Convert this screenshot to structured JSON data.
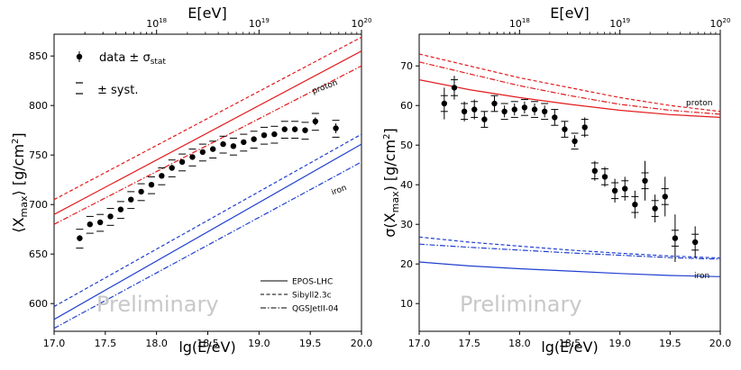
{
  "figure": {
    "watermark": "Preliminary"
  },
  "colors": {
    "proton": "#e31a1c",
    "iron": "#1f3fcf",
    "data": "#000000",
    "syst": "#000000",
    "watermark": "#c8c8c8"
  },
  "chart_data": [
    {
      "type": "scatter",
      "name": "mean-xmax",
      "xlabel": "lg(E/eV)",
      "ylabel": "⟨X",
      "ylabel_sub": "max",
      "ylabel_unit": "⟩  [g/cm",
      "ylabel_sup": "2",
      "ylabel_end": "]",
      "top_label": "E[eV]",
      "xlim": [
        17.0,
        20.0
      ],
      "ylim": [
        572,
        872
      ],
      "xticks": [
        17.0,
        17.5,
        18.0,
        18.5,
        19.0,
        19.5,
        20.0
      ],
      "xtick_labels": [
        "17.0",
        "17.5",
        "18.0",
        "18.5",
        "19.0",
        "19.5",
        "20.0"
      ],
      "yticks": [
        600,
        650,
        700,
        750,
        800,
        850
      ],
      "ytick_labels": [
        "600",
        "650",
        "700",
        "750",
        "800",
        "850"
      ],
      "top_ticks": [
        18,
        19,
        20
      ],
      "top_tick_labels": [
        {
          "base": "10",
          "exp": "18"
        },
        {
          "base": "10",
          "exp": "19"
        },
        {
          "base": "10",
          "exp": "20"
        }
      ],
      "data": {
        "x": [
          17.25,
          17.35,
          17.45,
          17.55,
          17.65,
          17.75,
          17.85,
          17.95,
          18.05,
          18.15,
          18.25,
          18.35,
          18.45,
          18.55,
          18.65,
          18.75,
          18.85,
          18.95,
          19.05,
          19.15,
          19.25,
          19.35,
          19.45,
          19.55,
          19.75
        ],
        "y": [
          666,
          680,
          682,
          688,
          695,
          705,
          713,
          720,
          729,
          737,
          743,
          748,
          753,
          756,
          761,
          759,
          763,
          766,
          770,
          771,
          776,
          776,
          775,
          784,
          777
        ],
        "stat": [
          3,
          2,
          2,
          2,
          2,
          1.5,
          1.5,
          1.5,
          1.5,
          1.5,
          1.5,
          1.5,
          1.5,
          1.5,
          1.5,
          2,
          2,
          2,
          2,
          2,
          2.5,
          3,
          3,
          4,
          5
        ],
        "syst_up": [
          9,
          8,
          8,
          8,
          8,
          8,
          8,
          8,
          8,
          8,
          8,
          8,
          8,
          8,
          8,
          8,
          8,
          8,
          8,
          8,
          8,
          8,
          8,
          8,
          8
        ],
        "syst_down": [
          10,
          9,
          9,
          9,
          9,
          9,
          9,
          9,
          9,
          9,
          9,
          9,
          9,
          9,
          9,
          9,
          9,
          9,
          9,
          9,
          9,
          9,
          9,
          9,
          9
        ]
      },
      "models": [
        {
          "name": "EPOS-LHC",
          "dash": "solid",
          "proton": [
            [
              17.0,
              690
            ],
            [
              20.0,
              855
            ]
          ],
          "iron": [
            [
              17.0,
              584
            ],
            [
              20.0,
              761
            ]
          ]
        },
        {
          "name": "Sibyll2.3c",
          "dash": "dashed",
          "proton": [
            [
              17.0,
              705
            ],
            [
              20.0,
              869
            ]
          ],
          "iron": [
            [
              17.0,
              597
            ],
            [
              20.0,
              771
            ]
          ]
        },
        {
          "name": "QGSJetII-04",
          "dash": "dashdot",
          "proton": [
            [
              17.0,
              680
            ],
            [
              20.0,
              840
            ]
          ],
          "iron": [
            [
              17.0,
              575
            ],
            [
              20.0,
              743
            ]
          ]
        }
      ],
      "labels": {
        "proton": "proton",
        "iron": "iron"
      },
      "legend": {
        "data_label": "data ± σ",
        "data_label_sub": "stat",
        "syst_label": "±  syst.",
        "position": "top-left"
      }
    },
    {
      "type": "scatter",
      "name": "sigma-xmax",
      "xlabel": "lg(E/eV)",
      "ylabel": "σ(X",
      "ylabel_sub": "max",
      "ylabel_unit": ")  [g/cm",
      "ylabel_sup": "2",
      "ylabel_end": "]",
      "top_label": "E[eV]",
      "xlim": [
        17.0,
        20.0
      ],
      "ylim": [
        3,
        78
      ],
      "xticks": [
        17.0,
        17.5,
        18.0,
        18.5,
        19.0,
        19.5,
        20.0
      ],
      "xtick_labels": [
        "17.0",
        "17.5",
        "18.0",
        "18.5",
        "19.0",
        "19.5",
        "20.0"
      ],
      "yticks": [
        10,
        20,
        30,
        40,
        50,
        60,
        70
      ],
      "ytick_labels": [
        "10",
        "20",
        "30",
        "40",
        "50",
        "60",
        "70"
      ],
      "top_ticks": [
        18,
        19,
        20
      ],
      "top_tick_labels": [
        {
          "base": "10",
          "exp": "18"
        },
        {
          "base": "10",
          "exp": "19"
        },
        {
          "base": "10",
          "exp": "20"
        }
      ],
      "data": {
        "x": [
          17.25,
          17.35,
          17.45,
          17.55,
          17.65,
          17.75,
          17.85,
          17.95,
          18.05,
          18.15,
          18.25,
          18.35,
          18.45,
          18.55,
          18.65,
          18.75,
          18.85,
          18.95,
          19.05,
          19.15,
          19.25,
          19.35,
          19.45,
          19.55,
          19.75
        ],
        "y": [
          60.5,
          64.5,
          58.5,
          59,
          56.5,
          60.5,
          58.5,
          59,
          59.5,
          59,
          58.5,
          57,
          54,
          51,
          54.5,
          43.5,
          42,
          38.5,
          39,
          35,
          41,
          34,
          37,
          26.5,
          25.5
        ],
        "stat": [
          4,
          3,
          2.5,
          2.5,
          2,
          2,
          1.5,
          1.5,
          1.5,
          1.5,
          1.5,
          2,
          2,
          1.5,
          2.5,
          2.5,
          2.5,
          3,
          3,
          3.5,
          5,
          3.5,
          5,
          6,
          4
        ],
        "syst_up": [
          2,
          2,
          2,
          2,
          2,
          2,
          2,
          2,
          2,
          2,
          2,
          2,
          2,
          2,
          2,
          2,
          2,
          2,
          2,
          2,
          2,
          2,
          2,
          2,
          2
        ],
        "syst_down": [
          2,
          2,
          2,
          2,
          2,
          2,
          2,
          2,
          2,
          2,
          2,
          2,
          2,
          2,
          2,
          2,
          2,
          2,
          2,
          2,
          2,
          2,
          2,
          2,
          2
        ]
      },
      "models": [
        {
          "name": "EPOS-LHC",
          "dash": "solid",
          "proton": [
            [
              17.0,
              66.5
            ],
            [
              17.5,
              64.0
            ],
            [
              18.0,
              62.0
            ],
            [
              18.5,
              60.3
            ],
            [
              19.0,
              58.8
            ],
            [
              19.5,
              57.7
            ],
            [
              20.0,
              57.0
            ]
          ],
          "iron": [
            [
              17.0,
              20.5
            ],
            [
              17.5,
              19.5
            ],
            [
              18.0,
              18.8
            ],
            [
              18.5,
              18.2
            ],
            [
              19.0,
              17.6
            ],
            [
              19.5,
              17.1
            ],
            [
              20.0,
              16.8
            ]
          ]
        },
        {
          "name": "Sibyll2.3c",
          "dash": "dashed",
          "proton": [
            [
              17.0,
              73.0
            ],
            [
              17.5,
              70.0
            ],
            [
              18.0,
              67.0
            ],
            [
              18.5,
              64.5
            ],
            [
              19.0,
              62.0
            ],
            [
              19.5,
              60.0
            ],
            [
              20.0,
              58.5
            ]
          ],
          "iron": [
            [
              17.0,
              26.8
            ],
            [
              17.5,
              25.5
            ],
            [
              18.0,
              24.5
            ],
            [
              18.5,
              23.5
            ],
            [
              19.0,
              22.7
            ],
            [
              19.5,
              22.0
            ],
            [
              20.0,
              21.5
            ]
          ]
        },
        {
          "name": "QGSJetII-04",
          "dash": "dashdot",
          "proton": [
            [
              17.0,
              71.0
            ],
            [
              17.5,
              68.0
            ],
            [
              18.0,
              65.0
            ],
            [
              18.5,
              62.5
            ],
            [
              19.0,
              60.3
            ],
            [
              19.5,
              58.8
            ],
            [
              20.0,
              57.8
            ]
          ],
          "iron": [
            [
              17.0,
              25.0
            ],
            [
              17.5,
              24.2
            ],
            [
              18.0,
              23.5
            ],
            [
              18.5,
              22.8
            ],
            [
              19.0,
              22.2
            ],
            [
              19.5,
              21.6
            ],
            [
              20.0,
              21.2
            ]
          ]
        }
      ],
      "labels": {
        "proton": "proton",
        "iron": "iron"
      }
    }
  ]
}
